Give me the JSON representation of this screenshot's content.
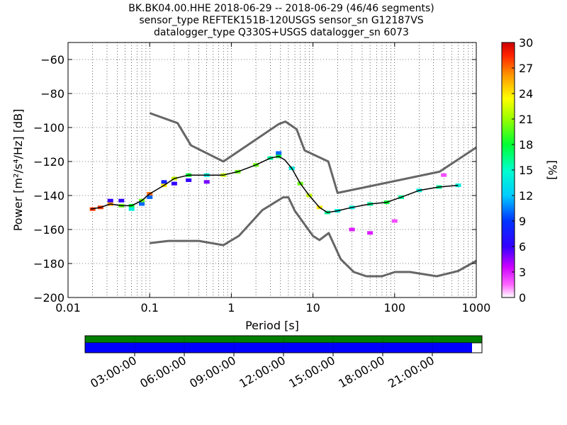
{
  "chart_data": [
    {
      "type": "heatmap",
      "title_lines": [
        "BK.BK04.00.HHE   2018-06-29 -- 2018-06-29  (46/46 segments)",
        "sensor_type REFTEK151B-120USGS sensor_sn G12187VS",
        "datalogger_type Q330S+USGS datalogger_sn 6073"
      ],
      "xlabel": "Period [s]",
      "ylabel": "Power [m²/s⁴/Hz] [dB]",
      "x_scale": "log",
      "xlim": [
        0.01,
        1000
      ],
      "ylim": [
        -200,
        -50
      ],
      "x_ticks": [
        0.01,
        0.1,
        1,
        10,
        100,
        1000
      ],
      "x_tick_labels": [
        "0.01",
        "0.1",
        "1",
        "10",
        "100",
        "1000"
      ],
      "y_ticks": [
        -200,
        -180,
        -160,
        -140,
        -120,
        -100,
        -80,
        -60
      ],
      "y_tick_labels": [
        "−200",
        "−180",
        "−160",
        "−140",
        "−120",
        "−100",
        "−80",
        "−60"
      ],
      "grid": true,
      "colorbar": {
        "label": "[%]",
        "range": [
          0,
          30
        ],
        "ticks": [
          0,
          3,
          6,
          9,
          12,
          15,
          18,
          21,
          24,
          27,
          30
        ],
        "colormap": "pqlx"
      },
      "series": [
        {
          "name": "",
          "role": "new-high-noise-model",
          "color": "#666666",
          "x": [
            0.1,
            0.22,
            0.32,
            0.8,
            3.8,
            4.6,
            6.3,
            7.9,
            15.4,
            20,
            354.8,
            10000
          ],
          "y": [
            -91.5,
            -97.4,
            -110.5,
            -120,
            -98,
            -96.5,
            -101,
            -113.5,
            -120,
            -138.5,
            -126,
            -80.1
          ]
        },
        {
          "name": "",
          "role": "new-low-noise-model",
          "color": "#666666",
          "x": [
            0.1,
            0.17,
            0.4,
            0.8,
            1.24,
            2.4,
            4.3,
            5,
            6,
            10,
            12,
            15.6,
            21.9,
            31.6,
            45,
            70,
            101,
            154,
            328,
            600,
            10000
          ],
          "y": [
            -168,
            -166.7,
            -166.7,
            -169.2,
            -163.7,
            -148.6,
            -141.1,
            -141.1,
            -149,
            -163.8,
            -166.2,
            -162.1,
            -177.5,
            -185,
            -187.5,
            -187.5,
            -185,
            -185,
            -187.5,
            -184.4,
            -151.5
          ]
        },
        {
          "name": "",
          "role": "mode",
          "color": "#000000",
          "x": [
            0.019,
            0.025,
            0.033,
            0.045,
            0.06,
            0.08,
            0.1,
            0.15,
            0.2,
            0.3,
            0.5,
            0.8,
            1.2,
            2,
            3,
            3.8,
            4.5,
            5.5,
            7,
            9,
            12,
            15,
            20,
            30,
            50,
            80,
            120,
            200,
            350,
            600
          ],
          "y": [
            -148,
            -147,
            -145,
            -146,
            -146,
            -143,
            -139,
            -134,
            -130,
            -128,
            -128,
            -128,
            -126,
            -122,
            -118,
            -117,
            -119,
            -124,
            -133,
            -140,
            -147,
            -150,
            -149,
            -147,
            -145,
            -144,
            -141,
            -137,
            -135,
            -134
          ]
        }
      ],
      "percentile_cells": [
        {
          "x": 0.02,
          "y": -148,
          "pct": 28
        },
        {
          "x": 0.025,
          "y": -147,
          "pct": 28
        },
        {
          "x": 0.033,
          "y": -145,
          "pct": 26
        },
        {
          "x": 0.033,
          "y": -143,
          "pct": 6
        },
        {
          "x": 0.045,
          "y": -146,
          "pct": 20
        },
        {
          "x": 0.045,
          "y": -143,
          "pct": 6
        },
        {
          "x": 0.06,
          "y": -146,
          "pct": 18
        },
        {
          "x": 0.06,
          "y": -148,
          "pct": 14
        },
        {
          "x": 0.08,
          "y": -143,
          "pct": 20
        },
        {
          "x": 0.08,
          "y": -145,
          "pct": 10
        },
        {
          "x": 0.1,
          "y": -139,
          "pct": 27
        },
        {
          "x": 0.1,
          "y": -141,
          "pct": 10
        },
        {
          "x": 0.15,
          "y": -134,
          "pct": 24
        },
        {
          "x": 0.15,
          "y": -132,
          "pct": 8
        },
        {
          "x": 0.2,
          "y": -130,
          "pct": 22
        },
        {
          "x": 0.2,
          "y": -133,
          "pct": 6
        },
        {
          "x": 0.3,
          "y": -128,
          "pct": 18
        },
        {
          "x": 0.3,
          "y": -131,
          "pct": 6
        },
        {
          "x": 0.5,
          "y": -128,
          "pct": 14
        },
        {
          "x": 0.5,
          "y": -132,
          "pct": 5
        },
        {
          "x": 0.8,
          "y": -128,
          "pct": 22
        },
        {
          "x": 1.2,
          "y": -126,
          "pct": 20
        },
        {
          "x": 2,
          "y": -122,
          "pct": 20
        },
        {
          "x": 3,
          "y": -118,
          "pct": 16
        },
        {
          "x": 3.8,
          "y": -117,
          "pct": 18
        },
        {
          "x": 3.8,
          "y": -115,
          "pct": 10
        },
        {
          "x": 5.5,
          "y": -124,
          "pct": 14
        },
        {
          "x": 7,
          "y": -133,
          "pct": 20
        },
        {
          "x": 9,
          "y": -140,
          "pct": 22
        },
        {
          "x": 12,
          "y": -147,
          "pct": 24
        },
        {
          "x": 15,
          "y": -150,
          "pct": 16
        },
        {
          "x": 20,
          "y": -149,
          "pct": 14
        },
        {
          "x": 30,
          "y": -147,
          "pct": 14
        },
        {
          "x": 50,
          "y": -145,
          "pct": 16
        },
        {
          "x": 80,
          "y": -144,
          "pct": 18
        },
        {
          "x": 120,
          "y": -141,
          "pct": 16
        },
        {
          "x": 200,
          "y": -137,
          "pct": 14
        },
        {
          "x": 350,
          "y": -135,
          "pct": 16
        },
        {
          "x": 600,
          "y": -134,
          "pct": 14
        },
        {
          "x": 30,
          "y": -160,
          "pct": 3
        },
        {
          "x": 50,
          "y": -162,
          "pct": 3
        },
        {
          "x": 100,
          "y": -155,
          "pct": 2
        },
        {
          "x": 400,
          "y": -128,
          "pct": 2
        }
      ]
    },
    {
      "type": "timeline",
      "data_coverage_fraction": 0.975,
      "segments": 46,
      "time_ticks": [
        "03:00:00",
        "06:00:00",
        "09:00:00",
        "12:00:00",
        "15:00:00",
        "18:00:00",
        "21:00:00"
      ]
    }
  ]
}
